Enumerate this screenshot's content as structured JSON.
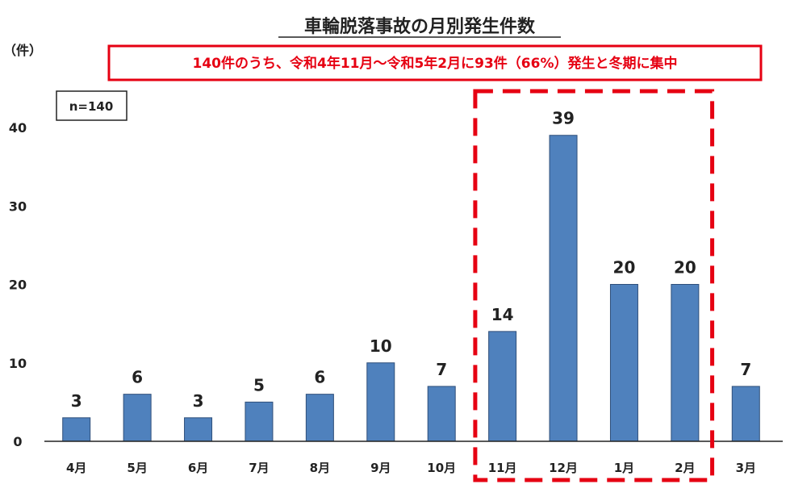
{
  "chart_data": {
    "type": "bar",
    "title": "車輪脱落事故の月別発生件数",
    "ylabel": "（件）",
    "xlabel": "",
    "categories": [
      "4月",
      "5月",
      "6月",
      "7月",
      "8月",
      "9月",
      "10月",
      "11月",
      "12月",
      "1月",
      "2月",
      "3月"
    ],
    "values": [
      3,
      6,
      3,
      5,
      6,
      10,
      7,
      14,
      39,
      20,
      20,
      7
    ],
    "ylim": [
      0,
      40
    ],
    "yticks": [
      0,
      10,
      20,
      30,
      40
    ],
    "grid": false,
    "bar_color": "#4f81bd",
    "annotations": {
      "callout": "140件のうち、令和4年11月～令和5年2月に93件（66%）発生と冬期に集中",
      "sample_size": "n=140",
      "highlight_categories": [
        "11月",
        "12月",
        "1月",
        "2月"
      ],
      "highlight_color": "#e60012"
    }
  }
}
